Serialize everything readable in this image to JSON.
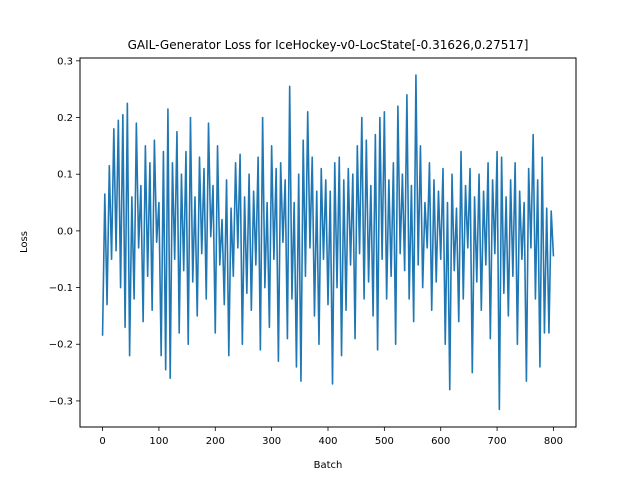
{
  "chart_data": {
    "type": "line",
    "title": "GAIL-Generator Loss for IceHockey-v0-LocState[-0.31626,0.27517]",
    "xlabel": "Batch",
    "ylabel": "Loss",
    "xlim": [
      -40,
      840
    ],
    "ylim": [
      -0.346,
      0.305
    ],
    "xticks": [
      0,
      100,
      200,
      300,
      400,
      500,
      600,
      700,
      800
    ],
    "xtick_labels": [
      "0",
      "100",
      "200",
      "300",
      "400",
      "500",
      "600",
      "700",
      "800"
    ],
    "yticks": [
      -0.3,
      -0.2,
      -0.1,
      0.0,
      0.1,
      0.2,
      0.3
    ],
    "ytick_labels": [
      "−0.3",
      "−0.2",
      "−0.1",
      "0.0",
      "0.1",
      "0.2",
      "0.3"
    ],
    "grid": false,
    "color": "#1f77b4",
    "x": [
      0,
      4,
      8,
      12,
      16,
      20,
      24,
      28,
      32,
      36,
      40,
      44,
      48,
      52,
      56,
      60,
      64,
      68,
      72,
      76,
      80,
      84,
      88,
      92,
      96,
      100,
      104,
      108,
      112,
      116,
      120,
      124,
      128,
      132,
      136,
      140,
      144,
      148,
      152,
      156,
      160,
      164,
      168,
      172,
      176,
      180,
      184,
      188,
      192,
      196,
      200,
      204,
      208,
      212,
      216,
      220,
      224,
      228,
      232,
      236,
      240,
      244,
      248,
      252,
      256,
      260,
      264,
      268,
      272,
      276,
      280,
      284,
      288,
      292,
      296,
      300,
      304,
      308,
      312,
      316,
      320,
      324,
      328,
      332,
      336,
      340,
      344,
      348,
      352,
      356,
      360,
      364,
      368,
      372,
      376,
      380,
      384,
      388,
      392,
      396,
      400,
      404,
      408,
      412,
      416,
      420,
      424,
      428,
      432,
      436,
      440,
      444,
      448,
      452,
      456,
      460,
      464,
      468,
      472,
      476,
      480,
      484,
      488,
      492,
      496,
      500,
      504,
      508,
      512,
      516,
      520,
      524,
      528,
      532,
      536,
      540,
      544,
      548,
      552,
      556,
      560,
      564,
      568,
      572,
      576,
      580,
      584,
      588,
      592,
      596,
      600,
      604,
      608,
      612,
      616,
      620,
      624,
      628,
      632,
      636,
      640,
      644,
      648,
      652,
      656,
      660,
      664,
      668,
      672,
      676,
      680,
      684,
      688,
      692,
      696,
      700,
      704,
      708,
      712,
      716,
      720,
      724,
      728,
      732,
      736,
      740,
      744,
      748,
      752,
      756,
      760,
      764,
      768,
      772,
      776,
      780,
      784,
      788,
      792,
      796,
      800
    ],
    "y": [
      -0.185,
      0.065,
      -0.13,
      0.115,
      -0.05,
      0.18,
      -0.035,
      0.195,
      -0.1,
      0.205,
      -0.17,
      0.225,
      -0.22,
      0.06,
      -0.12,
      0.19,
      -0.03,
      0.08,
      -0.16,
      0.15,
      -0.08,
      0.12,
      -0.14,
      0.16,
      -0.02,
      0.05,
      -0.22,
      0.14,
      -0.245,
      0.215,
      -0.26,
      0.12,
      -0.05,
      0.175,
      -0.18,
      0.1,
      -0.07,
      0.14,
      -0.2,
      0.2,
      -0.09,
      0.06,
      -0.15,
      0.13,
      -0.04,
      0.11,
      -0.12,
      0.19,
      -0.01,
      0.08,
      -0.18,
      0.15,
      -0.06,
      0.02,
      -0.13,
      0.09,
      -0.22,
      0.04,
      -0.08,
      0.12,
      -0.03,
      0.135,
      -0.2,
      0.06,
      -0.11,
      0.1,
      -0.14,
      0.07,
      -0.06,
      0.13,
      -0.21,
      0.2,
      -0.1,
      0.05,
      -0.17,
      0.15,
      -0.05,
      0.11,
      -0.23,
      0.12,
      -0.02,
      0.09,
      -0.19,
      0.255,
      -0.12,
      0.05,
      -0.24,
      0.1,
      -0.265,
      0.16,
      -0.08,
      0.21,
      -0.03,
      0.13,
      -0.15,
      0.07,
      -0.2,
      0.11,
      -0.05,
      0.09,
      -0.13,
      0.07,
      -0.27,
      0.12,
      -0.1,
      0.13,
      -0.22,
      0.09,
      -0.14,
      0.11,
      -0.06,
      0.1,
      -0.19,
      0.15,
      -0.04,
      0.2,
      -0.12,
      0.16,
      -0.09,
      0.08,
      -0.15,
      0.17,
      -0.21,
      0.2,
      -0.05,
      0.21,
      -0.12,
      0.09,
      -0.08,
      0.12,
      -0.2,
      0.22,
      -0.04,
      0.1,
      -0.07,
      0.24,
      -0.12,
      0.08,
      -0.16,
      0.275,
      -0.06,
      0.15,
      -0.1,
      0.05,
      -0.03,
      0.12,
      -0.14,
      0.09,
      -0.09,
      0.07,
      -0.05,
      0.11,
      -0.2,
      0.05,
      -0.28,
      0.1,
      -0.07,
      0.04,
      -0.16,
      0.14,
      -0.12,
      0.08,
      -0.03,
      0.11,
      -0.25,
      0.06,
      -0.09,
      0.1,
      -0.14,
      0.07,
      -0.06,
      0.12,
      -0.19,
      0.09,
      -0.04,
      0.14,
      -0.315,
      0.13,
      -0.11,
      0.06,
      -0.15,
      0.09,
      -0.08,
      0.12,
      -0.2,
      0.07,
      -0.05,
      0.05,
      -0.265,
      0.11,
      -0.03,
      0.17,
      -0.12,
      0.09,
      -0.24,
      0.13,
      -0.18,
      0.04,
      -0.18,
      0.035,
      -0.045
    ]
  }
}
